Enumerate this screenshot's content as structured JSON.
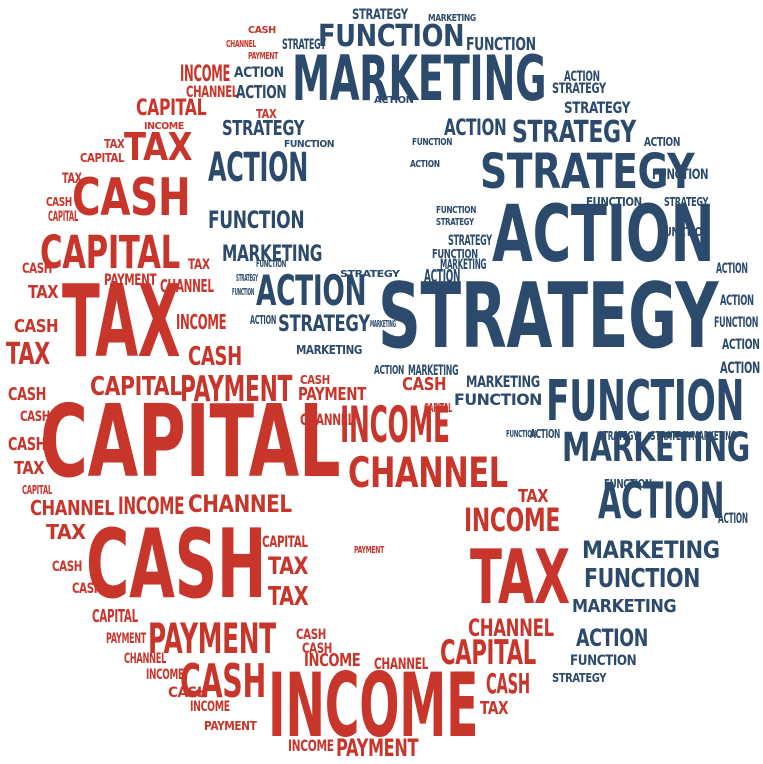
{
  "colors": {
    "red": "#c8352b",
    "blue": "#2c4a6b",
    "background": "#ffffff"
  },
  "finance_words": {
    "tax": "Tax",
    "cash": "Cash",
    "capital": "Capital",
    "income": "Income",
    "payment": "Payment",
    "channel": "Channel"
  },
  "business_words": {
    "marketing": "Marketing",
    "function": "Function",
    "strategy": "Strategy",
    "action": "Action"
  }
}
